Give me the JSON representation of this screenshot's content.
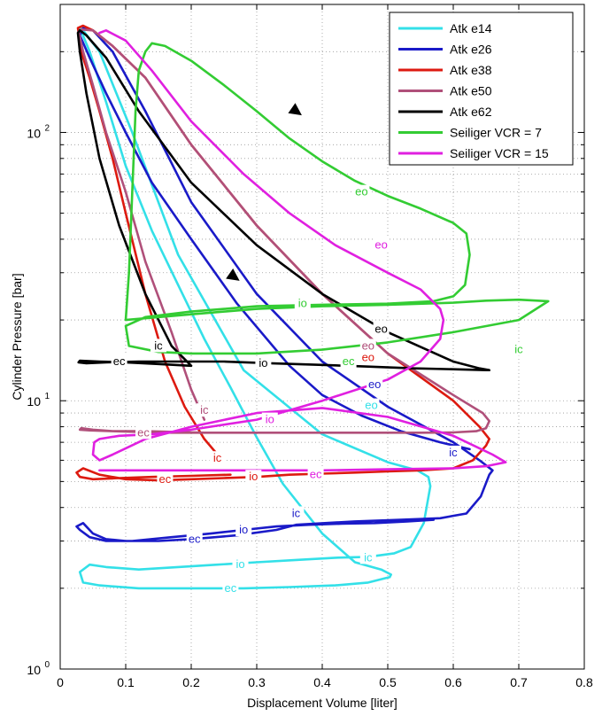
{
  "chart_data": {
    "type": "line",
    "xlabel": "Displacement Volume [liter]",
    "ylabel": "Cylinder Pressure [bar]",
    "xlim": [
      0,
      0.8
    ],
    "ylim": [
      1,
      300
    ],
    "yscale": "log",
    "grid": true,
    "legend_position": "top-right",
    "x_ticks": [
      {
        "value": 0,
        "label": "0"
      },
      {
        "value": 0.1,
        "label": "0.1"
      },
      {
        "value": 0.2,
        "label": "0.2"
      },
      {
        "value": 0.3,
        "label": "0.3"
      },
      {
        "value": 0.4,
        "label": "0.4"
      },
      {
        "value": 0.5,
        "label": "0.5"
      },
      {
        "value": 0.6,
        "label": "0.6"
      },
      {
        "value": 0.7,
        "label": "0.7"
      },
      {
        "value": 0.8,
        "label": "0.8"
      }
    ],
    "y_ticks": [
      {
        "value": 1,
        "base": "10",
        "exp": "0"
      },
      {
        "value": 10,
        "base": "10",
        "exp": "1"
      },
      {
        "value": 100,
        "base": "10",
        "exp": "2"
      }
    ],
    "series": [
      {
        "name": "Atk e14",
        "color": "#33e0e8",
        "x": [
          0.503,
          0.47,
          0.42,
          0.35,
          0.28,
          0.2,
          0.12,
          0.06,
          0.035,
          0.03,
          0.045,
          0.07,
          0.12,
          0.18,
          0.24,
          0.3,
          0.36,
          0.42,
          0.47,
          0.51,
          0.535,
          0.555,
          0.565,
          0.562,
          0.545,
          0.5,
          0.4,
          0.28,
          0.18,
          0.11,
          0.06,
          0.035,
          0.03,
          0.045,
          0.07,
          0.1,
          0.14,
          0.18,
          0.22,
          0.26,
          0.3,
          0.34,
          0.4,
          0.45,
          0.49,
          0.505,
          0.503
        ],
        "y": [
          2.2,
          2.1,
          2.05,
          2.02,
          2.0,
          2.0,
          2.0,
          2.05,
          2.1,
          2.3,
          2.45,
          2.4,
          2.35,
          2.4,
          2.45,
          2.5,
          2.55,
          2.6,
          2.62,
          2.7,
          2.85,
          3.5,
          4.8,
          5.2,
          5.5,
          5.9,
          7.5,
          13,
          35,
          100,
          200,
          240,
          245,
          200,
          130,
          75,
          43,
          27,
          17,
          11.2,
          7.3,
          4.9,
          3.2,
          2.5,
          2.35,
          2.25,
          2.2
        ]
      },
      {
        "name": "Atk e26",
        "color": "#1a1ac8",
        "x": [
          0.57,
          0.53,
          0.48,
          0.43,
          0.38,
          0.33,
          0.28,
          0.23,
          0.17,
          0.11,
          0.07,
          0.045,
          0.03,
          0.025,
          0.035,
          0.05,
          0.07,
          0.1,
          0.15,
          0.2,
          0.27,
          0.33,
          0.36,
          0.45,
          0.52,
          0.58,
          0.62,
          0.642,
          0.655,
          0.66,
          0.64,
          0.6,
          0.5,
          0.4,
          0.3,
          0.2,
          0.13,
          0.08,
          0.05,
          0.035,
          0.03,
          0.045,
          0.07,
          0.1,
          0.14,
          0.2,
          0.27,
          0.35,
          0.4,
          0.46,
          0.52,
          0.58,
          0.625
        ],
        "y": [
          3.6,
          3.55,
          3.5,
          3.48,
          3.45,
          3.4,
          3.3,
          3.2,
          3.1,
          3.0,
          3.0,
          3.1,
          3.3,
          3.4,
          3.5,
          3.2,
          3.05,
          3.0,
          3.0,
          3.05,
          3.15,
          3.3,
          3.45,
          3.55,
          3.6,
          3.65,
          3.8,
          4.4,
          5.3,
          5.5,
          6,
          7,
          9.5,
          14,
          25,
          55,
          120,
          200,
          240,
          245,
          230,
          190,
          140,
          100,
          65,
          40,
          23,
          13.5,
          10.5,
          8.8,
          7.7,
          7.0,
          6.6
        ]
      },
      {
        "name": "Atk e38",
        "color": "#dd1a10",
        "x": [
          0.26,
          0.2,
          0.14,
          0.09,
          0.05,
          0.03,
          0.025,
          0.035,
          0.06,
          0.1,
          0.15,
          0.2,
          0.25,
          0.3,
          0.35,
          0.4,
          0.45,
          0.5,
          0.55,
          0.6,
          0.63,
          0.65,
          0.655,
          0.64,
          0.6,
          0.5,
          0.4,
          0.3,
          0.2,
          0.13,
          0.08,
          0.05,
          0.035,
          0.027,
          0.032,
          0.045,
          0.06,
          0.08,
          0.1,
          0.13,
          0.16,
          0.19,
          0.22,
          0.25
        ],
        "y": [
          5.3,
          5.25,
          5.2,
          5.15,
          5.1,
          5.2,
          5.4,
          5.6,
          5.3,
          5.1,
          5.05,
          5.1,
          5.15,
          5.2,
          5.3,
          5.35,
          5.4,
          5.45,
          5.5,
          5.6,
          6.0,
          6.8,
          7.2,
          8,
          10,
          15,
          25,
          45,
          90,
          160,
          210,
          240,
          250,
          245,
          200,
          160,
          120,
          80,
          50,
          25,
          14,
          9.5,
          7.2,
          5.9
        ]
      },
      {
        "name": "Atk e50",
        "color": "#b0507a",
        "x": [
          0.22,
          0.18,
          0.13,
          0.08,
          0.045,
          0.03,
          0.032,
          0.05,
          0.08,
          0.12,
          0.17,
          0.22,
          0.27,
          0.33,
          0.4,
          0.48,
          0.55,
          0.6,
          0.635,
          0.65,
          0.655,
          0.645,
          0.6,
          0.5,
          0.4,
          0.3,
          0.2,
          0.13,
          0.08,
          0.05,
          0.033,
          0.028,
          0.035,
          0.05,
          0.07,
          0.1,
          0.13,
          0.17,
          0.2,
          0.22
        ],
        "y": [
          7.6,
          7.65,
          7.7,
          7.7,
          7.75,
          7.8,
          7.9,
          7.8,
          7.7,
          7.65,
          7.6,
          7.6,
          7.6,
          7.6,
          7.6,
          7.6,
          7.6,
          7.62,
          7.7,
          7.9,
          8.4,
          9,
          10.5,
          15,
          25,
          45,
          90,
          160,
          210,
          240,
          242,
          238,
          200,
          150,
          100,
          60,
          33,
          18,
          11,
          8.5
        ]
      },
      {
        "name": "Atk e62",
        "color": "#000000",
        "x": [
          0.2,
          0.15,
          0.1,
          0.06,
          0.03,
          0.028,
          0.04,
          0.07,
          0.12,
          0.18,
          0.25,
          0.32,
          0.4,
          0.47,
          0.54,
          0.6,
          0.65,
          0.655,
          0.64,
          0.6,
          0.5,
          0.4,
          0.3,
          0.2,
          0.12,
          0.07,
          0.04,
          0.03,
          0.027,
          0.03,
          0.04,
          0.06,
          0.09,
          0.13,
          0.17,
          0.2
        ],
        "y": [
          13.5,
          13.7,
          13.9,
          14.0,
          14.1,
          13.9,
          13.8,
          13.9,
          14.0,
          14.0,
          14.0,
          13.8,
          13.6,
          13.4,
          13.2,
          13.1,
          13.0,
          13.0,
          13.2,
          14,
          18,
          25,
          38,
          65,
          120,
          190,
          230,
          240,
          235,
          200,
          140,
          80,
          45,
          25,
          16,
          13.5
        ]
      },
      {
        "name": "Seiliger VCR = 7",
        "color": "#33cc33",
        "x": [
          0.1,
          0.2,
          0.3,
          0.4,
          0.5,
          0.6,
          0.65,
          0.7,
          0.745,
          0.7,
          0.6,
          0.5,
          0.4,
          0.3,
          0.2,
          0.15,
          0.105,
          0.1,
          0.13,
          0.2,
          0.3,
          0.4,
          0.5,
          0.57,
          0.6,
          0.618,
          0.625,
          0.62,
          0.6,
          0.55,
          0.5,
          0.45,
          0.4,
          0.35,
          0.3,
          0.25,
          0.2,
          0.16,
          0.14,
          0.13,
          0.12,
          0.115,
          0.11,
          0.105,
          0.1
        ],
        "y": [
          20,
          21,
          22,
          22.5,
          22.8,
          23.2,
          23.6,
          23.8,
          23.5,
          20,
          18,
          16.5,
          15.5,
          15,
          15,
          15.2,
          16,
          19,
          20.5,
          21.5,
          22.5,
          22.8,
          23,
          23.5,
          24.5,
          27,
          35,
          42,
          46,
          52,
          58,
          66,
          78,
          95,
          120,
          150,
          185,
          210,
          215,
          200,
          170,
          120,
          60,
          30,
          20
        ]
      },
      {
        "name": "Seiliger VCR = 15",
        "color": "#e020e0",
        "x": [
          0.06,
          0.13,
          0.2,
          0.3,
          0.4,
          0.5,
          0.6,
          0.65,
          0.68,
          0.66,
          0.6,
          0.5,
          0.4,
          0.3,
          0.2,
          0.13,
          0.08,
          0.06,
          0.05,
          0.052,
          0.06,
          0.09,
          0.14,
          0.2,
          0.3,
          0.4,
          0.5,
          0.55,
          0.58,
          0.585,
          0.58,
          0.55,
          0.5,
          0.42,
          0.35,
          0.28,
          0.2,
          0.14,
          0.1,
          0.07,
          0.06
        ],
        "y": [
          5.5,
          5.5,
          5.5,
          5.5,
          5.5,
          5.55,
          5.6,
          5.7,
          5.9,
          6.3,
          7.4,
          8.7,
          9.4,
          9,
          8,
          7.2,
          6.3,
          6,
          6.3,
          7,
          7.2,
          7.4,
          7.5,
          7.8,
          8.5,
          10,
          12,
          14,
          17,
          20,
          22,
          26,
          30,
          38,
          50,
          70,
          110,
          170,
          220,
          240,
          235
        ]
      }
    ],
    "annotations": [
      {
        "text": "eo",
        "x": 0.46,
        "y": 60,
        "color": "#33cc33"
      },
      {
        "text": "io",
        "x": 0.37,
        "y": 23,
        "color": "#33cc33"
      },
      {
        "text": "ic",
        "x": 0.7,
        "y": 15.5,
        "color": "#33cc33"
      },
      {
        "text": "ec",
        "x": 0.44,
        "y": 14,
        "color": "#33cc33"
      },
      {
        "text": "ic",
        "x": 0.15,
        "y": 16,
        "color": "#000000"
      },
      {
        "text": "eo",
        "x": 0.49,
        "y": 38,
        "color": "#e020e0"
      },
      {
        "text": "io",
        "x": 0.32,
        "y": 8.5,
        "color": "#e020e0"
      },
      {
        "text": "ec",
        "x": 0.39,
        "y": 5.3,
        "color": "#e020e0"
      },
      {
        "text": "eo",
        "x": 0.49,
        "y": 18.5,
        "color": "#000000"
      },
      {
        "text": "io",
        "x": 0.31,
        "y": 13.8,
        "color": "#000000"
      },
      {
        "text": "ec",
        "x": 0.09,
        "y": 14,
        "color": "#000000"
      },
      {
        "text": "eo",
        "x": 0.47,
        "y": 16,
        "color": "#b0507a"
      },
      {
        "text": "ic",
        "x": 0.22,
        "y": 9.2,
        "color": "#b0507a"
      },
      {
        "text": "ec",
        "x": 0.127,
        "y": 7.6,
        "color": "#b0507a"
      },
      {
        "text": "eo",
        "x": 0.47,
        "y": 14.5,
        "color": "#dd1a10"
      },
      {
        "text": "ic",
        "x": 0.24,
        "y": 6.1,
        "color": "#dd1a10"
      },
      {
        "text": "io",
        "x": 0.295,
        "y": 5.2,
        "color": "#dd1a10"
      },
      {
        "text": "ec",
        "x": 0.16,
        "y": 5.1,
        "color": "#dd1a10"
      },
      {
        "text": "eo",
        "x": 0.48,
        "y": 11.5,
        "color": "#1a1ac8"
      },
      {
        "text": "ic",
        "x": 0.36,
        "y": 3.8,
        "color": "#1a1ac8"
      },
      {
        "text": "io",
        "x": 0.28,
        "y": 3.3,
        "color": "#1a1ac8"
      },
      {
        "text": "ec",
        "x": 0.205,
        "y": 3.05,
        "color": "#1a1ac8"
      },
      {
        "text": "eo",
        "x": 0.475,
        "y": 9.6,
        "color": "#33e0e8"
      },
      {
        "text": "ic",
        "x": 0.47,
        "y": 2.6,
        "color": "#33e0e8"
      },
      {
        "text": "io",
        "x": 0.275,
        "y": 2.45,
        "color": "#33e0e8"
      },
      {
        "text": "ec",
        "x": 0.26,
        "y": 2.0,
        "color": "#33e0e8"
      },
      {
        "text": "ic",
        "x": 0.6,
        "y": 6.4,
        "color": "#1a1ac8"
      }
    ],
    "arrows": [
      {
        "x": 0.36,
        "y": 120,
        "dir": "down-right"
      },
      {
        "x": 0.265,
        "y": 29,
        "dir": "down-right"
      }
    ]
  }
}
